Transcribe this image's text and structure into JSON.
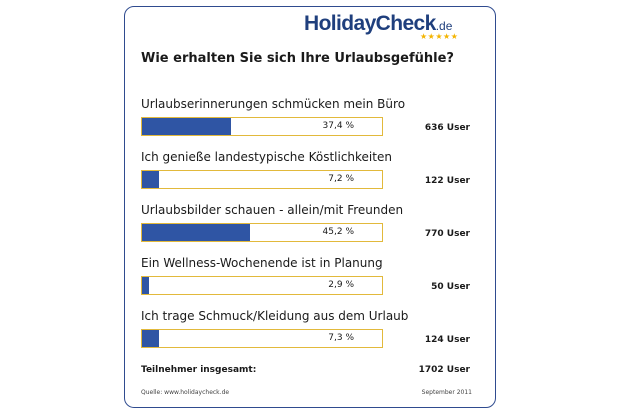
{
  "logo": {
    "text": "HolidayCheck",
    "tld": ".de",
    "stars": "★★★★★",
    "brand_color": "#1f3f7d",
    "star_color": "#f4b400"
  },
  "colors": {
    "bar_fill": "#2f55a4",
    "bar_border": "#e2b93b",
    "card_border": "#2f4b8f"
  },
  "chart_data": {
    "type": "bar",
    "orientation": "horizontal",
    "title": "Wie erhalten Sie sich Ihre Urlaubsgefühle?",
    "xlim": [
      0,
      100
    ],
    "grid": false,
    "items": [
      {
        "label": "Urlaubserinnerungen schmücken mein Büro",
        "value": 37.4,
        "value_label": "37,4 %",
        "count": 636,
        "count_label": "636 User"
      },
      {
        "label": "Ich genieße landestypische Köstlichkeiten",
        "value": 7.2,
        "value_label": "7,2 %",
        "count": 122,
        "count_label": "122 User"
      },
      {
        "label": "Urlaubsbilder schauen - allein/mit Freunden",
        "value": 45.2,
        "value_label": "45,2 %",
        "count": 770,
        "count_label": "770 User"
      },
      {
        "label": "Ein Wellness-Wochenende ist in Planung",
        "value": 2.9,
        "value_label": "2,9 %",
        "count": 50,
        "count_label": "50 User"
      },
      {
        "label": "Ich trage Schmuck/Kleidung aus dem Urlaub",
        "value": 7.3,
        "value_label": "7,3 %",
        "count": 124,
        "count_label": "124 User"
      }
    ],
    "total": {
      "label": "Teilnehmer insgesamt:",
      "value": 1702,
      "value_label": "1702 User"
    }
  },
  "footer": {
    "source": "Quelle: www.holidaycheck.de",
    "date": "September 2011"
  }
}
